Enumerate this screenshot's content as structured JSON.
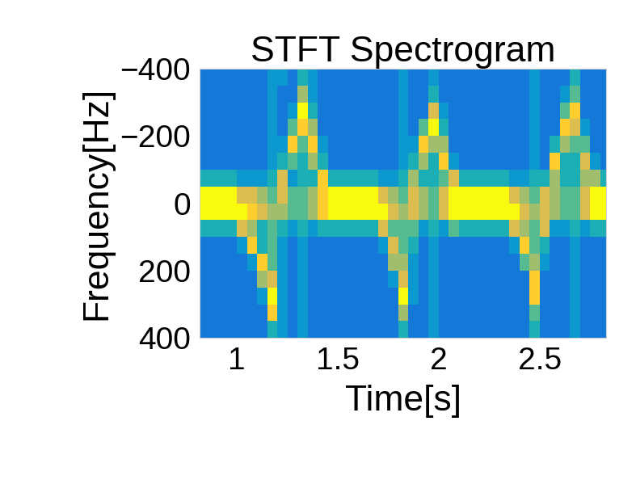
{
  "chart_data": {
    "type": "heatmap",
    "title": "STFT Spectrogram",
    "x_label": "Time[s]",
    "y_label": "Frequency[Hz]",
    "xlim": [
      0.815,
      2.83
    ],
    "ylim": [
      400,
      -400
    ],
    "xticks": [
      1,
      1.5,
      2,
      2.5
    ],
    "yticks": [
      {
        "value": -400,
        "label": "−400"
      },
      {
        "value": -200,
        "label": "−200"
      },
      0,
      200,
      400
    ],
    "color_range": [
      0,
      9
    ],
    "x_edges": [
      0.8,
      0.85,
      0.9,
      0.95,
      1.0,
      1.05,
      1.1,
      1.15,
      1.2,
      1.25,
      1.3,
      1.35,
      1.4,
      1.45,
      1.5,
      1.55,
      1.6,
      1.65,
      1.7,
      1.75,
      1.8,
      1.85,
      1.9,
      1.95,
      2.0,
      2.05,
      2.1,
      2.15,
      2.2,
      2.25,
      2.3,
      2.35,
      2.4,
      2.45,
      2.5,
      2.55,
      2.6,
      2.65,
      2.7,
      2.75,
      2.8,
      2.85
    ],
    "y_edges": [
      -400,
      -350,
      -300,
      -250,
      -200,
      -150,
      -100,
      -50,
      0,
      50,
      100,
      150,
      200,
      250,
      300,
      350,
      400
    ],
    "cells": [
      [
        2,
        2,
        2,
        2,
        2,
        2,
        4,
        9,
        9,
        4,
        2,
        2,
        2,
        2,
        2,
        2
      ],
      [
        2,
        2,
        2,
        2,
        2,
        2,
        4,
        9,
        9,
        4,
        2,
        2,
        2,
        2,
        2,
        2
      ],
      [
        2,
        2,
        2,
        2,
        2,
        2,
        4,
        9,
        9,
        4,
        2,
        2,
        2,
        2,
        2,
        2
      ],
      [
        2,
        2,
        2,
        2,
        2,
        2,
        4,
        9,
        9,
        4,
        2,
        2,
        2,
        2,
        2,
        2
      ],
      [
        2,
        2,
        2,
        2,
        2,
        2,
        3,
        7,
        9,
        7,
        3,
        2,
        2,
        2,
        2,
        2
      ],
      [
        2,
        2,
        2,
        2,
        2,
        2,
        3,
        7,
        8,
        6,
        8,
        3,
        2,
        2,
        2,
        2
      ],
      [
        2,
        2,
        2,
        2,
        2,
        2,
        3,
        6,
        7,
        4,
        4,
        8,
        6,
        3,
        2,
        2
      ],
      [
        3,
        3,
        3,
        3,
        3,
        3,
        4,
        5,
        6,
        5,
        5,
        5,
        7,
        9,
        8,
        4
      ],
      [
        3,
        2,
        2,
        2,
        3,
        4,
        7,
        7,
        6,
        4,
        3,
        3,
        3,
        3,
        3,
        3
      ],
      [
        2,
        2,
        3,
        5,
        8,
        5,
        3,
        5,
        5,
        3,
        2,
        2,
        2,
        2,
        2,
        2
      ],
      [
        4,
        6,
        9,
        8,
        5,
        4,
        4,
        5,
        5,
        4,
        3,
        3,
        3,
        3,
        3,
        3
      ],
      [
        3,
        3,
        4,
        6,
        8,
        6,
        4,
        6,
        6,
        3,
        2,
        2,
        2,
        2,
        2,
        2
      ],
      [
        2,
        2,
        2,
        2,
        3,
        4,
        8,
        8,
        8,
        4,
        2,
        2,
        2,
        2,
        2,
        2
      ],
      [
        2,
        2,
        2,
        2,
        2,
        2,
        4,
        9,
        9,
        4,
        2,
        2,
        2,
        2,
        2,
        2
      ],
      [
        2,
        2,
        2,
        2,
        2,
        2,
        4,
        9,
        9,
        4,
        2,
        2,
        2,
        2,
        2,
        2
      ],
      [
        2,
        2,
        2,
        2,
        2,
        2,
        4,
        9,
        9,
        4,
        2,
        2,
        2,
        2,
        2,
        2
      ],
      [
        2,
        2,
        2,
        2,
        2,
        2,
        4,
        9,
        9,
        4,
        2,
        2,
        2,
        2,
        2,
        2
      ],
      [
        2,
        2,
        2,
        2,
        2,
        2,
        4,
        9,
        9,
        4,
        2,
        2,
        2,
        2,
        2,
        2
      ],
      [
        2,
        2,
        2,
        2,
        2,
        2,
        3,
        7,
        9,
        7,
        3,
        2,
        2,
        2,
        2,
        2
      ],
      [
        2,
        2,
        2,
        2,
        2,
        2,
        3,
        6,
        7,
        5,
        7,
        6,
        3,
        2,
        2,
        2
      ],
      [
        3,
        3,
        3,
        3,
        3,
        3,
        4,
        5,
        6,
        5,
        5,
        6,
        7,
        9,
        6,
        4
      ],
      [
        2,
        2,
        2,
        2,
        3,
        4,
        6,
        7,
        7,
        5,
        4,
        3,
        3,
        3,
        2,
        2
      ],
      [
        2,
        2,
        2,
        5,
        8,
        6,
        4,
        6,
        6,
        3,
        2,
        2,
        2,
        2,
        2,
        2
      ],
      [
        3,
        4,
        7,
        9,
        6,
        4,
        4,
        5,
        5,
        4,
        3,
        3,
        3,
        3,
        3,
        3
      ],
      [
        2,
        2,
        3,
        4,
        6,
        8,
        5,
        7,
        7,
        3,
        2,
        2,
        2,
        2,
        2,
        2
      ],
      [
        2,
        2,
        2,
        2,
        2,
        3,
        7,
        9,
        9,
        5,
        2,
        2,
        2,
        2,
        2,
        2
      ],
      [
        2,
        2,
        2,
        2,
        2,
        2,
        4,
        9,
        9,
        4,
        2,
        2,
        2,
        2,
        2,
        2
      ],
      [
        2,
        2,
        2,
        2,
        2,
        2,
        4,
        9,
        9,
        4,
        2,
        2,
        2,
        2,
        2,
        2
      ],
      [
        2,
        2,
        2,
        2,
        2,
        2,
        4,
        9,
        9,
        4,
        2,
        2,
        2,
        2,
        2,
        2
      ],
      [
        2,
        2,
        2,
        2,
        2,
        2,
        4,
        9,
        9,
        4,
        2,
        2,
        2,
        2,
        2,
        2
      ],
      [
        2,
        2,
        2,
        2,
        2,
        2,
        4,
        9,
        9,
        4,
        2,
        2,
        2,
        2,
        2,
        2
      ],
      [
        2,
        2,
        2,
        2,
        2,
        2,
        3,
        7,
        9,
        7,
        3,
        2,
        2,
        2,
        2,
        2
      ],
      [
        2,
        2,
        2,
        2,
        2,
        2,
        3,
        6,
        7,
        6,
        8,
        5,
        2,
        2,
        2,
        2
      ],
      [
        3,
        3,
        3,
        3,
        3,
        3,
        4,
        5,
        6,
        5,
        5,
        6,
        8,
        8,
        5,
        4
      ],
      [
        2,
        2,
        2,
        2,
        2,
        2,
        4,
        7,
        7,
        7,
        4,
        3,
        2,
        2,
        2,
        2
      ],
      [
        2,
        2,
        2,
        2,
        4,
        8,
        6,
        6,
        6,
        3,
        2,
        2,
        2,
        2,
        2,
        2
      ],
      [
        2,
        3,
        5,
        8,
        6,
        4,
        4,
        5,
        5,
        3,
        2,
        2,
        2,
        2,
        2,
        2
      ],
      [
        4,
        5,
        8,
        7,
        5,
        4,
        4,
        5,
        5,
        4,
        3,
        3,
        3,
        3,
        3,
        3
      ],
      [
        2,
        2,
        2,
        3,
        5,
        7,
        6,
        7,
        7,
        3,
        2,
        2,
        2,
        2,
        2,
        2
      ],
      [
        2,
        2,
        2,
        2,
        2,
        3,
        6,
        9,
        9,
        4,
        2,
        2,
        2,
        2,
        2,
        2
      ],
      [
        2,
        2,
        2,
        2,
        2,
        2,
        4,
        9,
        9,
        4,
        2,
        2,
        2,
        2,
        2,
        2
      ]
    ]
  }
}
